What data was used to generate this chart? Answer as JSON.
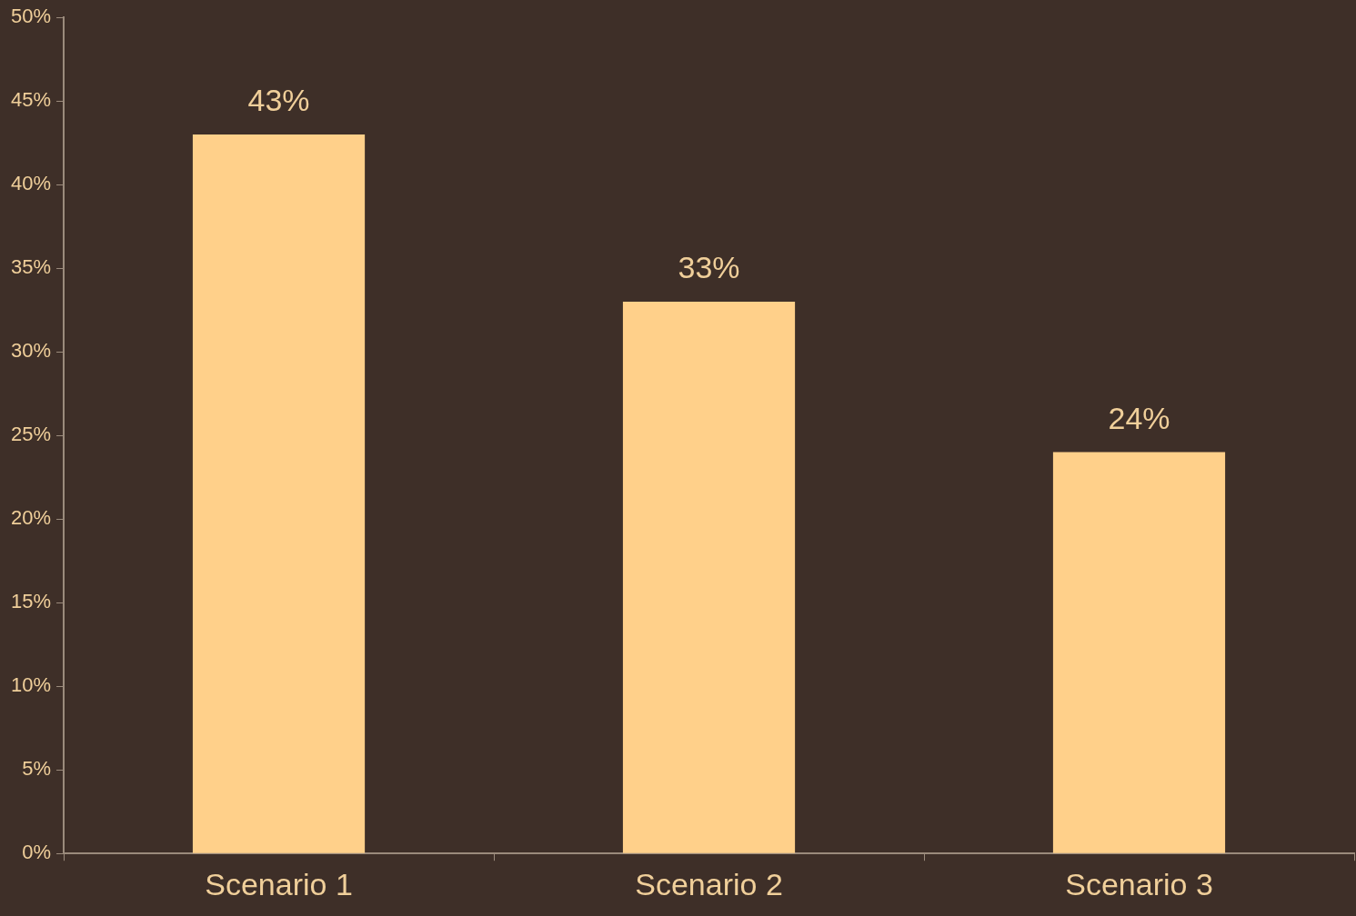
{
  "chart_data": {
    "type": "bar",
    "categories": [
      "Scenario 1",
      "Scenario 2",
      "Scenario 3"
    ],
    "values": [
      43,
      33,
      24
    ],
    "value_labels": [
      "43%",
      "33%",
      "24%"
    ],
    "color": "#ffd08a",
    "ylim": [
      0,
      50
    ],
    "yticks": [
      {
        "value": 0,
        "label": "0%"
      },
      {
        "value": 5,
        "label": "5%"
      },
      {
        "value": 10,
        "label": "10%"
      },
      {
        "value": 15,
        "label": "15%"
      },
      {
        "value": 20,
        "label": "20%"
      },
      {
        "value": 25,
        "label": "25%"
      },
      {
        "value": 30,
        "label": "30%"
      },
      {
        "value": 35,
        "label": "35%"
      },
      {
        "value": 40,
        "label": "40%"
      },
      {
        "value": 45,
        "label": "45%"
      },
      {
        "value": 50,
        "label": "50%"
      }
    ],
    "grid": false,
    "legend": false
  }
}
